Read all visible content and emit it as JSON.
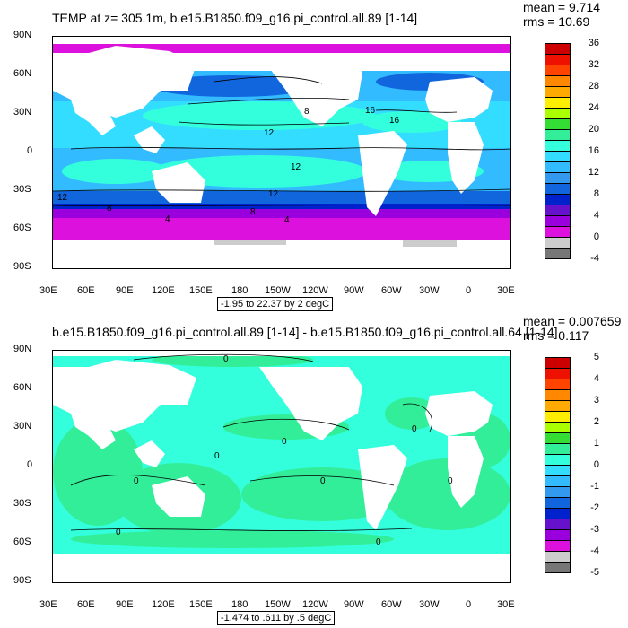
{
  "panels": [
    {
      "title": "TEMP at z= 305.1m, b.e15.B1850.f09_g16.pi_control.all.89 [1-14]",
      "mean_text": "mean = 9.714",
      "rms_text": "rms = 10.69",
      "range_text": "-1.95 to 22.37 by 2 degC",
      "colorbar_labels": [
        "36",
        "32",
        "28",
        "24",
        "20",
        "16",
        "12",
        "8",
        "4",
        "0",
        "-4"
      ],
      "colorbar_colors": [
        "#cc0000",
        "#ee1100",
        "#ff4400",
        "#ff8800",
        "#ffaa00",
        "#ffee00",
        "#aaff00",
        "#33dd33",
        "#33ee99",
        "#33ffdd",
        "#33ddff",
        "#33bbff",
        "#3399ee",
        "#1166dd",
        "#0022cc",
        "#6611cc",
        "#9900dd",
        "#dd11dd",
        "#cccccc",
        "#777777"
      ],
      "contour_labels": [
        "8",
        "12",
        "12",
        "12",
        "16",
        "12",
        "8",
        "8",
        "4",
        "4",
        "16"
      ]
    },
    {
      "title": "b.e15.B1850.f09_g16.pi_control.all.89 [1-14] - b.e15.B1850.f09_g16.pi_control.all.64 [1-14]",
      "mean_text": "mean = 0.007659",
      "rms_text": "rms = 0.117",
      "range_text": "-1.474 to .611 by .5 degC",
      "colorbar_labels": [
        "5",
        "4",
        "3",
        "2",
        "1",
        "0",
        "-1",
        "-2",
        "-3",
        "-4",
        "-5"
      ],
      "colorbar_colors": [
        "#cc0000",
        "#ee1100",
        "#ff4400",
        "#ff8800",
        "#ffaa00",
        "#ffee00",
        "#aaff00",
        "#33dd33",
        "#33ee99",
        "#33ffdd",
        "#33ddff",
        "#33bbff",
        "#3399ee",
        "#1166dd",
        "#0022cc",
        "#6611cc",
        "#9900dd",
        "#dd11dd",
        "#cccccc",
        "#777777"
      ],
      "contour_labels": [
        "0",
        "0",
        "0",
        "0",
        "0",
        "0",
        "0",
        "0",
        "0"
      ]
    }
  ],
  "axes": {
    "y_labels": [
      "90N",
      "60N",
      "30N",
      "0",
      "30S",
      "60S",
      "90S"
    ],
    "x_labels": [
      "30E",
      "60E",
      "90E",
      "120E",
      "150E",
      "180",
      "150W",
      "120W",
      "90W",
      "60W",
      "30W",
      "0",
      "30E"
    ]
  },
  "colors": {
    "land": "#ffffff",
    "ice_grey": "#cccccc"
  }
}
